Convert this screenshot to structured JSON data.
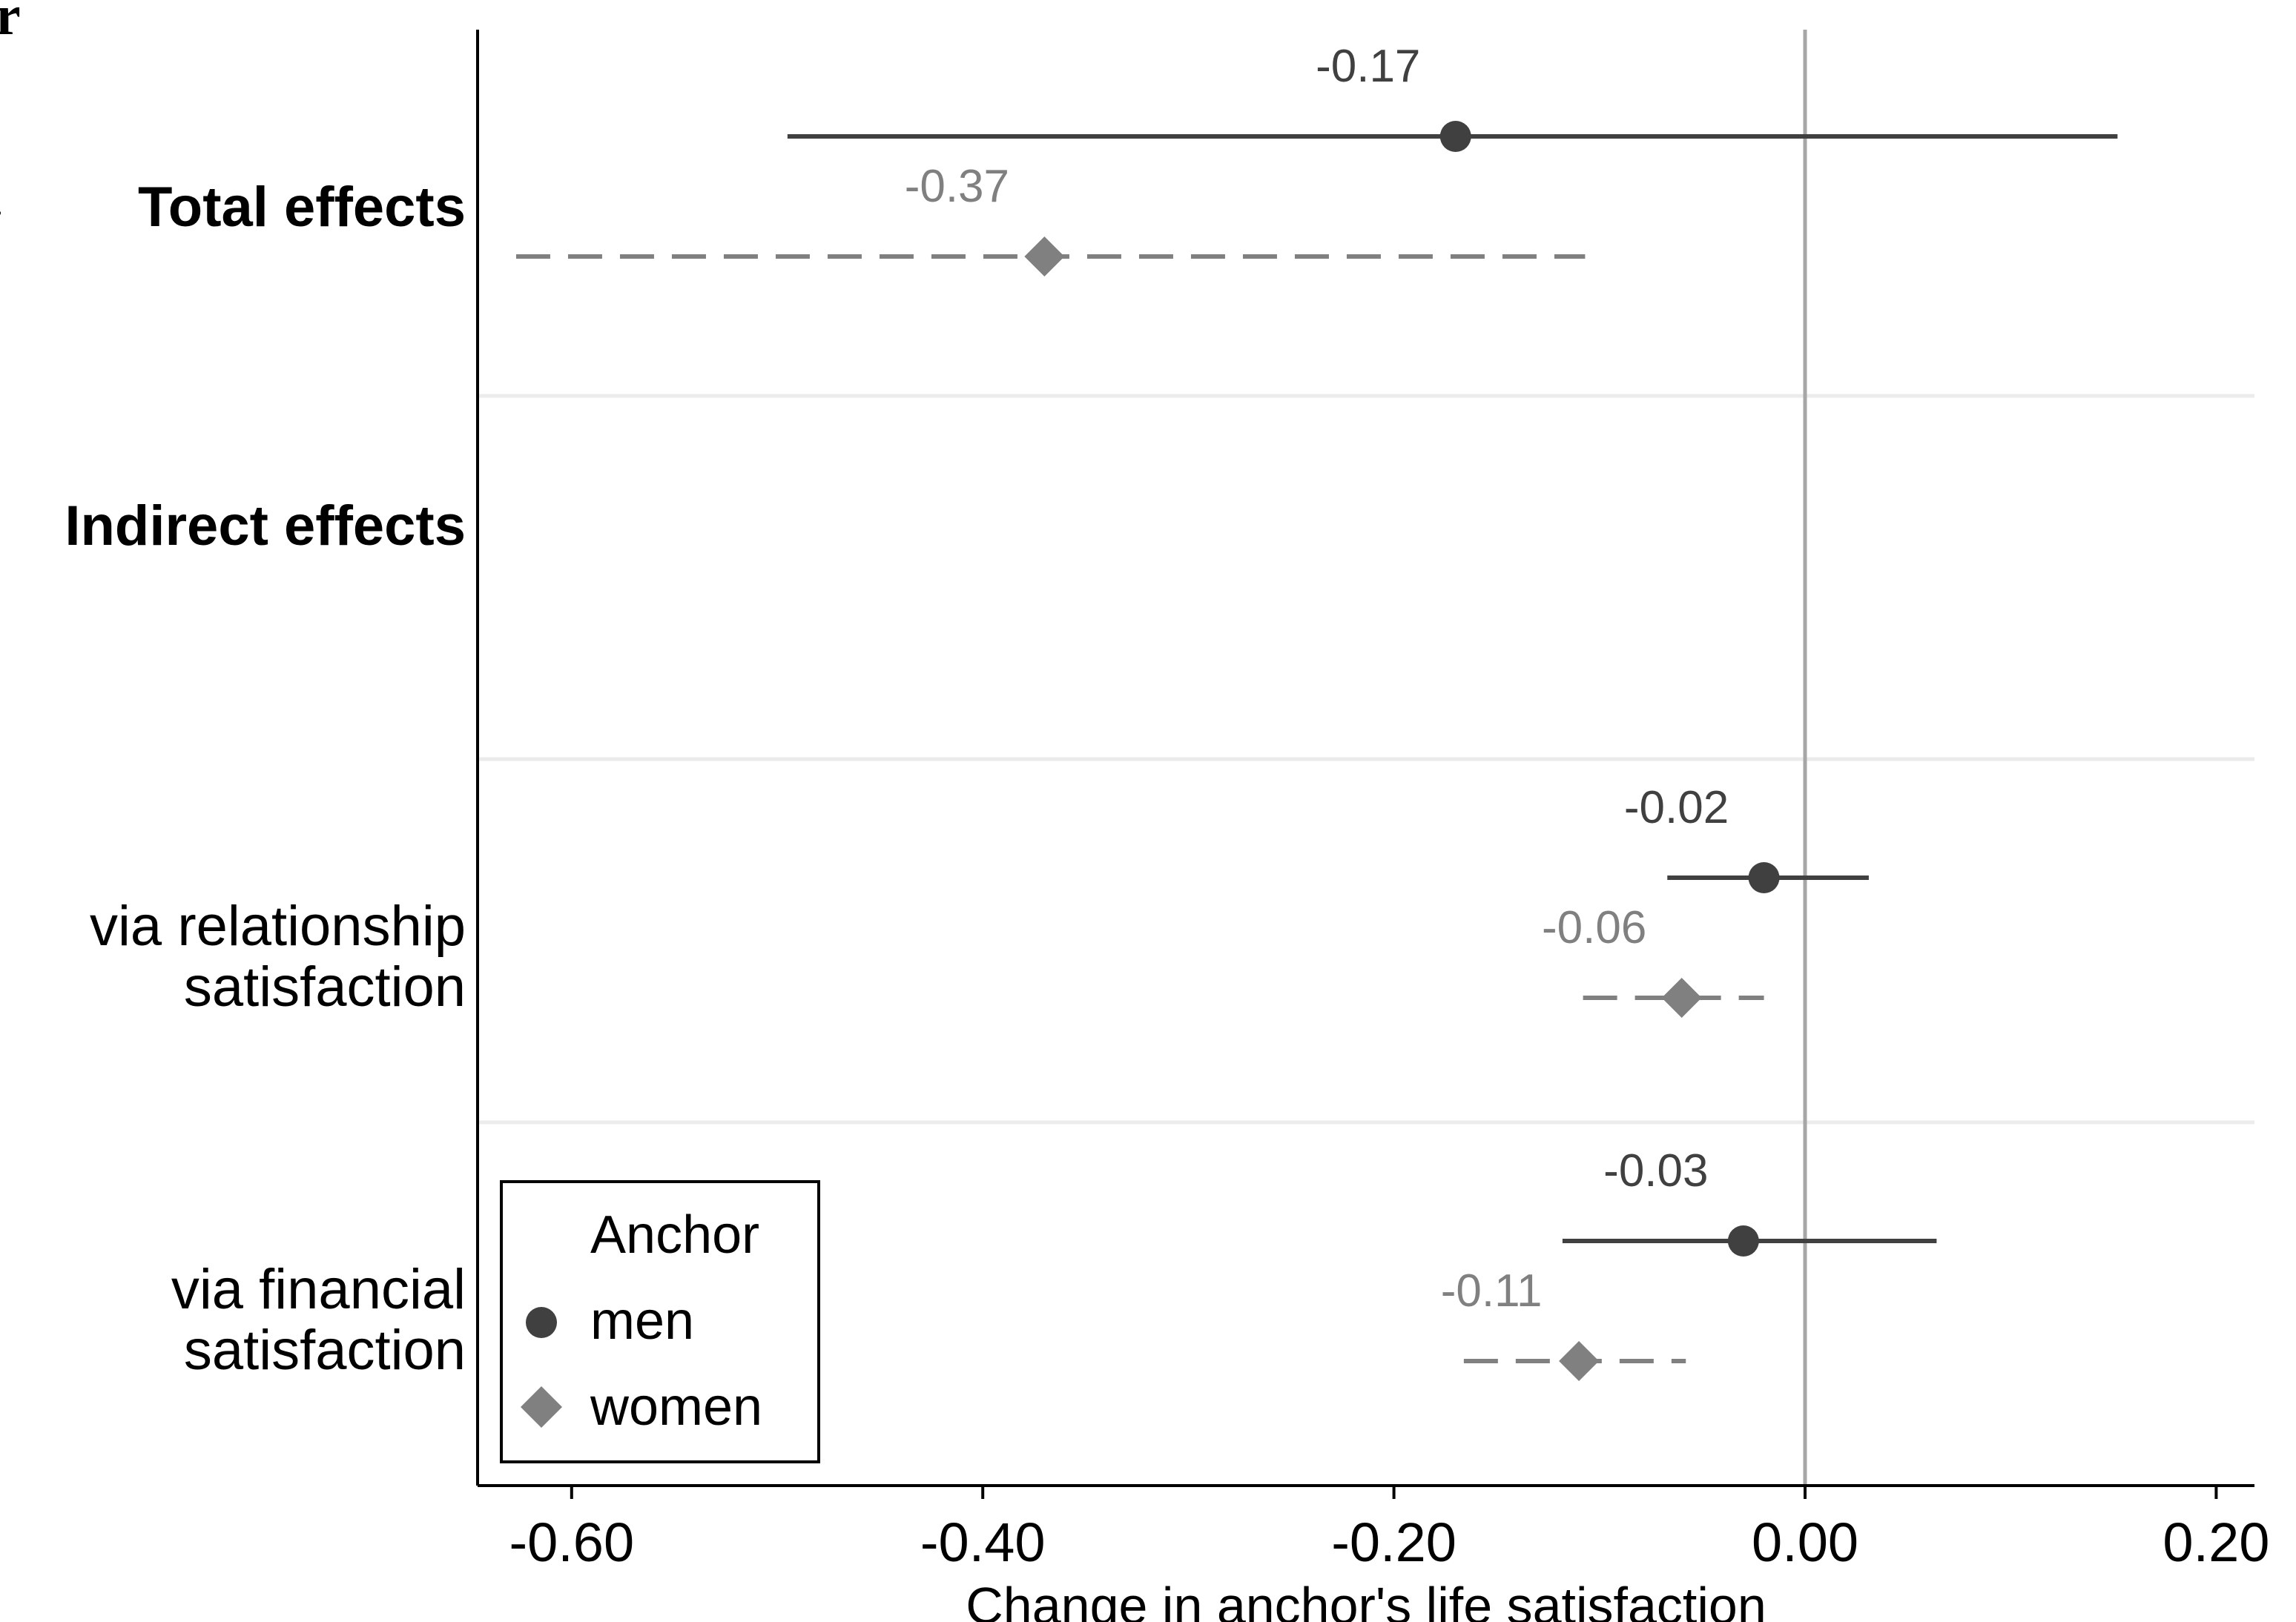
{
  "chart_data": {
    "type": "forest",
    "xlabel": "Change in anchor's life satisfaction",
    "xlim": [
      -0.64,
      0.22
    ],
    "x_ticks": [
      -0.6,
      -0.4,
      -0.2,
      0.0,
      0.2
    ],
    "x_tick_labels": [
      "-0.60",
      "-0.40",
      "-0.20",
      "0.00",
      "0.20"
    ],
    "reference_line": 0.0,
    "categories": [
      {
        "label_lines": [
          "Total effects"
        ],
        "bold": true
      },
      {
        "label_lines": [
          "Indirect effects"
        ],
        "bold": true
      },
      {
        "label_lines": [
          "via relationship",
          "satisfaction"
        ],
        "bold": false
      },
      {
        "label_lines": [
          "via financial",
          "satisfaction"
        ],
        "bold": false
      }
    ],
    "legend": {
      "title": "Anchor",
      "position": "bottom-left"
    },
    "series": [
      {
        "name": "men",
        "marker": "circle",
        "line": "solid",
        "color": "#404040",
        "points": [
          {
            "category": 0,
            "estimate": -0.17,
            "ci_low": -0.495,
            "ci_high": 0.152,
            "label": "-0.17"
          },
          {
            "category": 2,
            "estimate": -0.02,
            "ci_low": -0.067,
            "ci_high": 0.031,
            "label": "-0.02"
          },
          {
            "category": 3,
            "estimate": -0.03,
            "ci_low": -0.118,
            "ci_high": 0.064,
            "label": "-0.03"
          }
        ]
      },
      {
        "name": "women",
        "marker": "diamond",
        "line": "dashed",
        "color": "#808080",
        "points": [
          {
            "category": 0,
            "estimate": -0.37,
            "ci_low": -0.627,
            "ci_high": -0.107,
            "label": "-0.37"
          },
          {
            "category": 2,
            "estimate": -0.06,
            "ci_low": -0.108,
            "ci_high": -0.02,
            "label": "-0.06"
          },
          {
            "category": 3,
            "estimate": -0.11,
            "ci_low": -0.166,
            "ci_high": -0.058,
            "label": "-0.11"
          }
        ]
      }
    ]
  },
  "edge_glyphs": {
    "top": "r",
    "mid1": ".",
    "mid2": "s"
  }
}
